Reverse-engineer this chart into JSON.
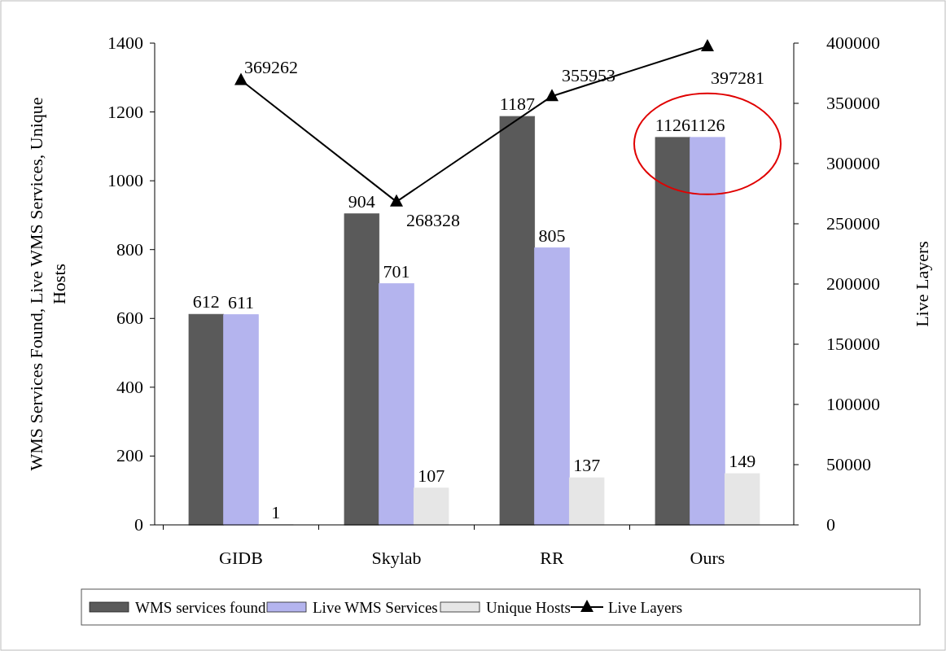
{
  "chart_data": {
    "type": "bar",
    "categories": [
      "GIDB",
      "Skylab",
      "RR",
      "Ours"
    ],
    "ylabel": "WMS Services Found, Live WMS Services, Unique Hosts",
    "y2label": "Live Layers",
    "ylim": [
      0,
      1400
    ],
    "yticks": [
      0,
      200,
      400,
      600,
      800,
      1000,
      1200,
      1400
    ],
    "y2lim": [
      0,
      400000
    ],
    "y2ticks": [
      0,
      50000,
      100000,
      150000,
      200000,
      250000,
      300000,
      350000,
      400000
    ],
    "series": [
      {
        "name": "WMS services found",
        "color": "#5a5a5a",
        "values": [
          612,
          904,
          1187,
          1126
        ]
      },
      {
        "name": "Live WMS Services",
        "color": "#b4b4ee",
        "values": [
          611,
          701,
          805,
          1126
        ]
      },
      {
        "name": "Unique Hosts",
        "color": "#e6e6e6",
        "values": [
          1,
          107,
          137,
          149
        ]
      },
      {
        "name": "Live Layers",
        "type": "line",
        "axis": "y2",
        "color": "#000000",
        "marker": "triangle",
        "values": [
          369262,
          268328,
          355953,
          397281
        ]
      }
    ],
    "data_labels": true,
    "legend": "bottom",
    "grid": false
  }
}
